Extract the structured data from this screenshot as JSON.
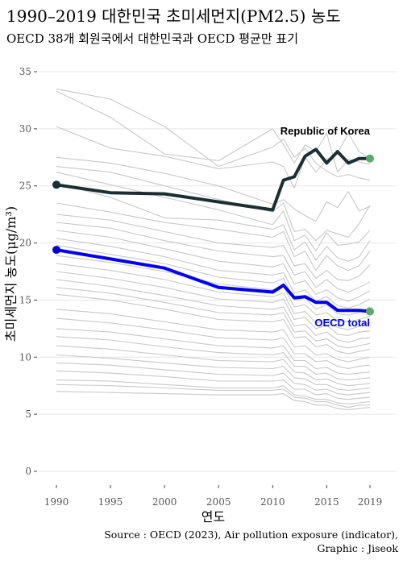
{
  "title": "1990–2019 대한민국 초미세먼지(PM2.5) 농도",
  "subtitle": "OECD 38개 회원국에서 대한민국과 OECD 평균만 표기",
  "caption": {
    "line1": "Source : OECD (2023), Air pollution exposure (indicator),",
    "line2": "Graphic : Jiseok"
  },
  "colors": {
    "korea": "#1b2f33",
    "oecd": "#0000ee",
    "others": "#c8c8c8",
    "endpoint": "#5aaa6a",
    "grid": "#e6e6e6"
  },
  "chart_data": {
    "type": "line",
    "xlabel": "연도",
    "ylabel": "초미세먼지 농도(μg/m³)",
    "xlim": [
      1990,
      2019
    ],
    "ylim": [
      0,
      35
    ],
    "x_ticks": [
      1990,
      1995,
      2000,
      2005,
      2010,
      2015,
      2019
    ],
    "y_ticks": [
      0,
      5,
      10,
      15,
      20,
      25,
      30,
      35
    ],
    "grid": true,
    "highlighted": [
      {
        "name": "Republic of Korea",
        "x": [
          1990,
          1995,
          2000,
          2010,
          2011,
          2012,
          2013,
          2014,
          2015,
          2016,
          2017,
          2018,
          2019
        ],
        "y": [
          25.1,
          24.4,
          24.3,
          22.9,
          25.5,
          25.8,
          27.6,
          28.2,
          27.0,
          28.0,
          27.0,
          27.4,
          27.4
        ]
      },
      {
        "name": "OECD total",
        "x": [
          1990,
          1995,
          2000,
          2005,
          2010,
          2011,
          2012,
          2013,
          2014,
          2015,
          2016,
          2017,
          2018,
          2019
        ],
        "y": [
          19.4,
          18.6,
          17.8,
          16.1,
          15.7,
          16.3,
          15.2,
          15.3,
          14.8,
          14.8,
          14.1,
          14.1,
          14.1,
          14.0
        ]
      }
    ],
    "background_series": {
      "x": [
        1990,
        1995,
        2000,
        2005,
        2010,
        2011,
        2012,
        2013,
        2014,
        2015,
        2016,
        2017,
        2018,
        2019
      ],
      "series": [
        [
          33.5,
          32.6,
          30.2,
          26.7,
          28.4,
          29.1,
          27.5,
          28.3,
          27.0,
          26.3,
          25.8,
          26.0,
          25.7,
          25.5
        ],
        [
          33.3,
          31.0,
          27.8,
          27.2,
          30.0,
          28.6,
          27.0,
          28.6,
          28.0,
          29.6,
          26.2,
          27.3,
          27.1,
          26.9
        ],
        [
          30.2,
          28.3,
          27.6,
          26.5,
          27.1,
          26.7,
          24.8,
          27.5,
          26.2,
          27.3,
          27.9,
          29.6,
          28.0,
          27.4
        ],
        [
          27.5,
          27.0,
          26.1,
          25.0,
          23.4,
          23.8,
          23.0,
          22.4,
          21.9,
          23.6,
          23.1,
          24.5,
          22.8,
          23.2
        ],
        [
          26.7,
          26.2,
          25.0,
          23.8,
          22.7,
          23.5,
          21.0,
          21.2,
          20.2,
          21.1,
          20.8,
          20.5,
          21.7,
          23.3
        ],
        [
          26.2,
          25.1,
          24.0,
          22.9,
          21.6,
          22.8,
          20.2,
          20.7,
          19.3,
          20.9,
          19.8,
          19.9,
          20.1,
          21.1
        ],
        [
          25.2,
          24.0,
          22.2,
          22.0,
          21.2,
          21.6,
          19.4,
          20.1,
          18.5,
          19.7,
          18.7,
          18.4,
          18.8,
          20.2
        ],
        [
          23.5,
          22.7,
          21.8,
          21.2,
          20.5,
          21.0,
          18.8,
          19.3,
          17.6,
          18.9,
          18.0,
          17.6,
          18.0,
          19.3
        ],
        [
          22.5,
          22.0,
          21.0,
          20.0,
          19.6,
          19.8,
          18.0,
          18.2,
          16.9,
          17.6,
          16.8,
          16.7,
          17.1,
          18.1
        ],
        [
          21.8,
          21.3,
          20.2,
          19.3,
          18.8,
          18.9,
          17.2,
          17.5,
          16.1,
          16.8,
          16.0,
          15.7,
          16.1,
          16.6
        ],
        [
          21.1,
          20.5,
          19.5,
          18.4,
          17.9,
          18.2,
          16.4,
          16.7,
          15.5,
          15.9,
          15.2,
          14.9,
          15.3,
          15.8
        ],
        [
          20.4,
          19.7,
          18.8,
          17.6,
          17.2,
          17.4,
          15.6,
          15.9,
          14.9,
          15.3,
          14.5,
          14.3,
          14.6,
          15.1
        ],
        [
          19.8,
          19.0,
          18.2,
          17.0,
          16.5,
          16.9,
          15.0,
          15.2,
          14.2,
          14.6,
          13.8,
          13.7,
          13.9,
          14.4
        ],
        [
          18.9,
          18.3,
          17.5,
          16.4,
          15.9,
          16.2,
          14.4,
          14.6,
          13.7,
          13.9,
          13.2,
          13.1,
          13.3,
          13.6
        ],
        [
          18.2,
          17.6,
          16.8,
          15.7,
          15.3,
          15.6,
          13.8,
          14.0,
          13.0,
          13.3,
          12.6,
          12.4,
          12.7,
          13.0
        ],
        [
          17.5,
          16.9,
          16.1,
          15.1,
          14.8,
          15.1,
          13.3,
          13.5,
          12.5,
          12.8,
          12.0,
          11.9,
          12.2,
          12.3
        ],
        [
          16.8,
          16.2,
          15.4,
          14.5,
          14.2,
          14.4,
          12.7,
          12.9,
          11.9,
          12.2,
          11.5,
          11.3,
          11.6,
          11.7
        ],
        [
          16.1,
          15.6,
          14.8,
          13.9,
          13.7,
          13.9,
          12.2,
          12.3,
          11.4,
          11.6,
          11.0,
          10.8,
          11.0,
          11.2
        ],
        [
          15.5,
          15.0,
          14.2,
          13.3,
          13.1,
          13.3,
          11.7,
          11.8,
          10.9,
          11.1,
          10.5,
          10.3,
          10.5,
          10.7
        ],
        [
          14.2,
          13.8,
          13.1,
          12.4,
          12.2,
          12.4,
          10.9,
          11.0,
          10.2,
          10.3,
          9.8,
          9.6,
          9.8,
          10.0
        ],
        [
          13.4,
          13.0,
          12.4,
          11.7,
          11.5,
          11.7,
          10.3,
          10.3,
          9.6,
          9.7,
          9.2,
          9.0,
          9.2,
          9.3
        ],
        [
          12.5,
          12.2,
          11.6,
          11.0,
          10.8,
          11.0,
          9.7,
          9.7,
          9.0,
          9.1,
          8.6,
          8.5,
          8.6,
          8.7
        ],
        [
          11.8,
          11.5,
          10.9,
          10.4,
          10.2,
          10.4,
          9.2,
          9.2,
          8.5,
          8.6,
          8.1,
          8.0,
          8.1,
          8.2
        ],
        [
          11.0,
          10.7,
          10.2,
          9.7,
          9.6,
          9.8,
          8.7,
          8.6,
          8.0,
          8.1,
          7.7,
          7.5,
          7.6,
          7.7
        ],
        [
          10.2,
          9.9,
          9.5,
          9.1,
          9.0,
          9.2,
          8.2,
          8.1,
          7.6,
          7.6,
          7.2,
          7.1,
          7.2,
          7.3
        ],
        [
          9.5,
          9.3,
          8.9,
          8.5,
          8.4,
          8.6,
          7.7,
          7.6,
          7.1,
          7.2,
          6.8,
          6.7,
          6.8,
          6.9
        ],
        [
          8.8,
          8.6,
          8.3,
          7.9,
          7.9,
          8.0,
          7.2,
          7.2,
          6.7,
          6.8,
          6.4,
          6.3,
          6.4,
          6.5
        ],
        [
          8.0,
          7.9,
          7.6,
          7.3,
          7.3,
          7.5,
          6.7,
          6.6,
          6.3,
          6.3,
          6.0,
          5.9,
          6.0,
          6.1
        ],
        [
          7.6,
          7.5,
          7.3,
          7.1,
          7.1,
          7.2,
          6.5,
          6.4,
          6.1,
          6.1,
          5.8,
          5.6,
          5.8,
          5.8
        ],
        [
          7.0,
          6.9,
          6.8,
          6.7,
          6.7,
          6.8,
          6.2,
          6.1,
          5.8,
          5.8,
          5.5,
          5.4,
          5.5,
          5.6
        ]
      ]
    }
  }
}
